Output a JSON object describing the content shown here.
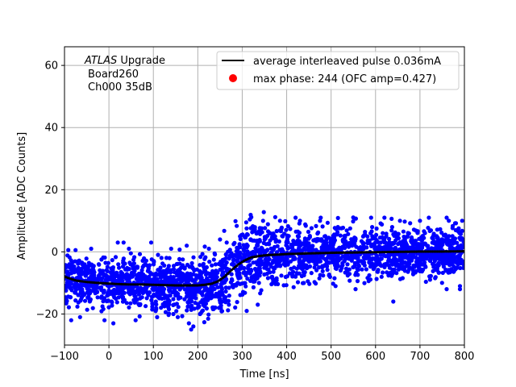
{
  "chart_data": {
    "type": "scatter",
    "xlabel": "Time [ns]",
    "ylabel": "Amplitude [ADC Counts]",
    "xlim": [
      -100,
      800
    ],
    "ylim": [
      -30,
      66
    ],
    "xticks": [
      -100,
      0,
      100,
      200,
      300,
      400,
      500,
      600,
      700,
      800
    ],
    "yticks": [
      -20,
      0,
      20,
      40,
      60
    ],
    "grid": true,
    "annotation": {
      "line1_italic": "ATLAS",
      "line1_rest": " Upgrade",
      "line2": "Board260",
      "line3": "Ch000 35dB"
    },
    "legend": {
      "placement": "top-right",
      "entries": [
        {
          "label": "average interleaved pulse 0.036mA",
          "kind": "line",
          "color": "#000000"
        },
        {
          "label": "max phase: 244 (OFC amp=0.427)",
          "kind": "marker",
          "color": "#ff0000"
        }
      ]
    },
    "series": [
      {
        "name": "average interleaved pulse 0.036mA",
        "kind": "line",
        "color": "#000000",
        "x": [
          -100,
          -75,
          -50,
          -25,
          0,
          25,
          50,
          75,
          100,
          125,
          150,
          175,
          200,
          215,
          230,
          245,
          260,
          275,
          290,
          305,
          320,
          340,
          360,
          380,
          400,
          450,
          500,
          550,
          600,
          650,
          700,
          750,
          800
        ],
        "y": [
          -8,
          -9.2,
          -9.7,
          -10,
          -10.2,
          -10.4,
          -10.5,
          -10.5,
          -10.6,
          -10.7,
          -10.8,
          -10.8,
          -10.8,
          -10.6,
          -10.3,
          -9.5,
          -8,
          -6,
          -4.2,
          -2.8,
          -1.8,
          -1.3,
          -1,
          -0.9,
          -0.7,
          -0.5,
          -0.3,
          -0.2,
          -0.1,
          0,
          0.1,
          0.1,
          0.2
        ]
      },
      {
        "name": "samples",
        "kind": "scatter",
        "color": "#0000ff",
        "spread_x": [
          -100,
          0,
          200,
          245,
          300,
          350,
          400,
          500,
          600,
          700,
          800
        ],
        "spread_half_width": [
          4,
          4,
          4,
          6,
          6,
          5,
          5,
          4,
          4,
          4,
          4
        ],
        "outliers": [
          {
            "x": 420,
            "y": 11
          },
          {
            "x": 430,
            "y": 10
          },
          {
            "x": 385,
            "y": 10
          },
          {
            "x": 475,
            "y": 10
          },
          {
            "x": 590,
            "y": 11
          },
          {
            "x": 620,
            "y": 11
          },
          {
            "x": 655,
            "y": 10
          },
          {
            "x": 700,
            "y": 10
          },
          {
            "x": 720,
            "y": 11
          },
          {
            "x": 760,
            "y": 11
          },
          {
            "x": 765,
            "y": 10
          },
          {
            "x": 795,
            "y": 10
          },
          {
            "x": 250,
            "y": 4
          },
          {
            "x": 265,
            "y": 3
          },
          {
            "x": 295,
            "y": 5
          },
          {
            "x": 20,
            "y": 3
          },
          {
            "x": 33,
            "y": 3
          },
          {
            "x": 95,
            "y": 3
          },
          {
            "x": 175,
            "y": 2
          },
          {
            "x": -40,
            "y": 1
          },
          {
            "x": 45,
            "y": 1
          },
          {
            "x": 140,
            "y": 1
          },
          {
            "x": 225,
            "y": 1
          },
          {
            "x": -85,
            "y": -22
          },
          {
            "x": -10,
            "y": -22
          },
          {
            "x": 10,
            "y": -23
          },
          {
            "x": 60,
            "y": -22
          },
          {
            "x": 180,
            "y": -23
          },
          {
            "x": 185,
            "y": -25
          },
          {
            "x": 190,
            "y": -24
          },
          {
            "x": 145,
            "y": -20
          },
          {
            "x": 155,
            "y": -21
          },
          {
            "x": 205,
            "y": -20
          },
          {
            "x": -65,
            "y": -21
          },
          {
            "x": 310,
            "y": -19
          },
          {
            "x": 335,
            "y": -17
          },
          {
            "x": 270,
            "y": -17
          },
          {
            "x": 640,
            "y": -16
          },
          {
            "x": 790,
            "y": -12
          },
          {
            "x": 555,
            "y": -12
          },
          {
            "x": 510,
            "y": -11
          },
          {
            "x": 760,
            "y": -12
          },
          {
            "x": 790,
            "y": -11
          }
        ]
      },
      {
        "name": "max phase: 244 (OFC amp=0.427)",
        "kind": "marker",
        "color": "#ff0000",
        "x": [
          244
        ],
        "y": [
          -10
        ]
      }
    ]
  }
}
